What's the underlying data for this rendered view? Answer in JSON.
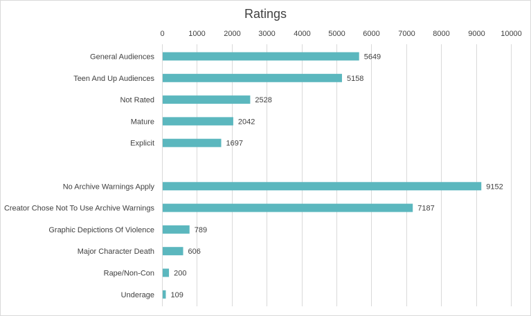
{
  "chart_data": {
    "type": "bar",
    "orientation": "horizontal",
    "title": "Ratings",
    "xlim": [
      0,
      10000
    ],
    "x_ticks": [
      "0",
      "1000",
      "2000",
      "3000",
      "4000",
      "5000",
      "6000",
      "7000",
      "8000",
      "9000",
      "10000"
    ],
    "x_axis_position": "top",
    "grid": true,
    "bar_color": "#5bb7be",
    "categories": [
      "General Audiences",
      "Teen And Up Audiences",
      "Not Rated",
      "Mature",
      "Explicit",
      "",
      "No Archive Warnings Apply",
      "Creator Chose Not To Use Archive Warnings",
      "Graphic Depictions Of Violence",
      "Major Character Death",
      "Rape/Non-Con",
      "Underage"
    ],
    "values": [
      5649,
      5158,
      2528,
      2042,
      1697,
      null,
      9152,
      7187,
      789,
      606,
      200,
      109
    ]
  }
}
